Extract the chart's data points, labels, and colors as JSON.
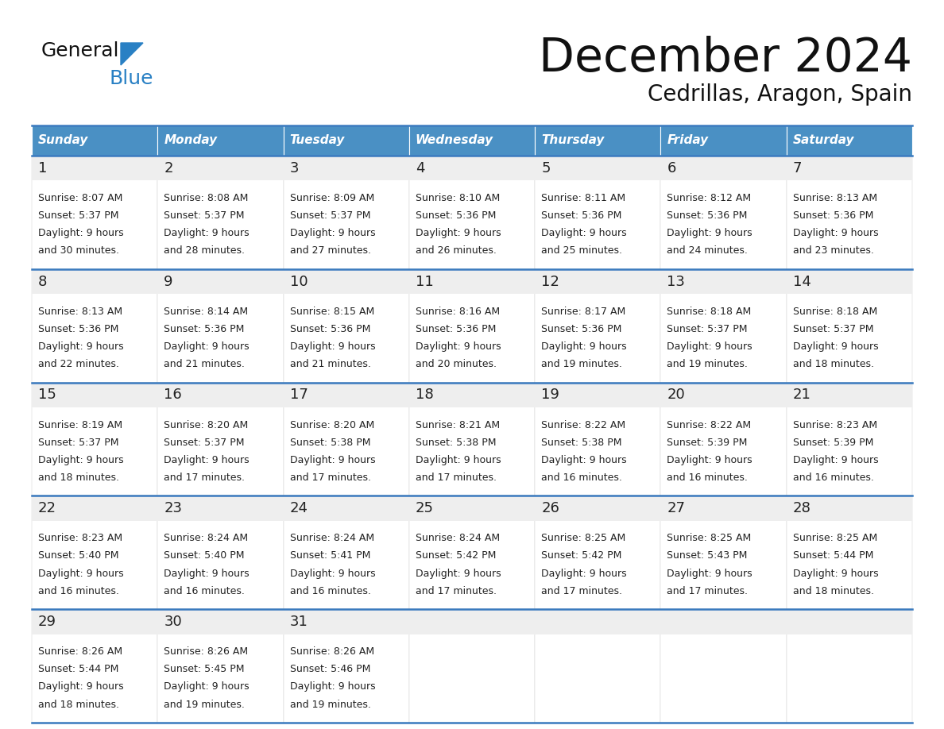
{
  "title": "December 2024",
  "subtitle": "Cedrillas, Aragon, Spain",
  "header_color": "#4a90c4",
  "header_text_color": "#ffffff",
  "cell_bg_white": "#ffffff",
  "cell_bg_gray": "#f0f0f0",
  "border_color": "#3a7abf",
  "text_color": "#222222",
  "day_names": [
    "Sunday",
    "Monday",
    "Tuesday",
    "Wednesday",
    "Thursday",
    "Friday",
    "Saturday"
  ],
  "days": [
    {
      "day": 1,
      "col": 0,
      "row": 0,
      "sunrise": "8:07 AM",
      "sunset": "5:37 PM",
      "daylight": "9 hours and 30 minutes."
    },
    {
      "day": 2,
      "col": 1,
      "row": 0,
      "sunrise": "8:08 AM",
      "sunset": "5:37 PM",
      "daylight": "9 hours and 28 minutes."
    },
    {
      "day": 3,
      "col": 2,
      "row": 0,
      "sunrise": "8:09 AM",
      "sunset": "5:37 PM",
      "daylight": "9 hours and 27 minutes."
    },
    {
      "day": 4,
      "col": 3,
      "row": 0,
      "sunrise": "8:10 AM",
      "sunset": "5:36 PM",
      "daylight": "9 hours and 26 minutes."
    },
    {
      "day": 5,
      "col": 4,
      "row": 0,
      "sunrise": "8:11 AM",
      "sunset": "5:36 PM",
      "daylight": "9 hours and 25 minutes."
    },
    {
      "day": 6,
      "col": 5,
      "row": 0,
      "sunrise": "8:12 AM",
      "sunset": "5:36 PM",
      "daylight": "9 hours and 24 minutes."
    },
    {
      "day": 7,
      "col": 6,
      "row": 0,
      "sunrise": "8:13 AM",
      "sunset": "5:36 PM",
      "daylight": "9 hours and 23 minutes."
    },
    {
      "day": 8,
      "col": 0,
      "row": 1,
      "sunrise": "8:13 AM",
      "sunset": "5:36 PM",
      "daylight": "9 hours and 22 minutes."
    },
    {
      "day": 9,
      "col": 1,
      "row": 1,
      "sunrise": "8:14 AM",
      "sunset": "5:36 PM",
      "daylight": "9 hours and 21 minutes."
    },
    {
      "day": 10,
      "col": 2,
      "row": 1,
      "sunrise": "8:15 AM",
      "sunset": "5:36 PM",
      "daylight": "9 hours and 21 minutes."
    },
    {
      "day": 11,
      "col": 3,
      "row": 1,
      "sunrise": "8:16 AM",
      "sunset": "5:36 PM",
      "daylight": "9 hours and 20 minutes."
    },
    {
      "day": 12,
      "col": 4,
      "row": 1,
      "sunrise": "8:17 AM",
      "sunset": "5:36 PM",
      "daylight": "9 hours and 19 minutes."
    },
    {
      "day": 13,
      "col": 5,
      "row": 1,
      "sunrise": "8:18 AM",
      "sunset": "5:37 PM",
      "daylight": "9 hours and 19 minutes."
    },
    {
      "day": 14,
      "col": 6,
      "row": 1,
      "sunrise": "8:18 AM",
      "sunset": "5:37 PM",
      "daylight": "9 hours and 18 minutes."
    },
    {
      "day": 15,
      "col": 0,
      "row": 2,
      "sunrise": "8:19 AM",
      "sunset": "5:37 PM",
      "daylight": "9 hours and 18 minutes."
    },
    {
      "day": 16,
      "col": 1,
      "row": 2,
      "sunrise": "8:20 AM",
      "sunset": "5:37 PM",
      "daylight": "9 hours and 17 minutes."
    },
    {
      "day": 17,
      "col": 2,
      "row": 2,
      "sunrise": "8:20 AM",
      "sunset": "5:38 PM",
      "daylight": "9 hours and 17 minutes."
    },
    {
      "day": 18,
      "col": 3,
      "row": 2,
      "sunrise": "8:21 AM",
      "sunset": "5:38 PM",
      "daylight": "9 hours and 17 minutes."
    },
    {
      "day": 19,
      "col": 4,
      "row": 2,
      "sunrise": "8:22 AM",
      "sunset": "5:38 PM",
      "daylight": "9 hours and 16 minutes."
    },
    {
      "day": 20,
      "col": 5,
      "row": 2,
      "sunrise": "8:22 AM",
      "sunset": "5:39 PM",
      "daylight": "9 hours and 16 minutes."
    },
    {
      "day": 21,
      "col": 6,
      "row": 2,
      "sunrise": "8:23 AM",
      "sunset": "5:39 PM",
      "daylight": "9 hours and 16 minutes."
    },
    {
      "day": 22,
      "col": 0,
      "row": 3,
      "sunrise": "8:23 AM",
      "sunset": "5:40 PM",
      "daylight": "9 hours and 16 minutes."
    },
    {
      "day": 23,
      "col": 1,
      "row": 3,
      "sunrise": "8:24 AM",
      "sunset": "5:40 PM",
      "daylight": "9 hours and 16 minutes."
    },
    {
      "day": 24,
      "col": 2,
      "row": 3,
      "sunrise": "8:24 AM",
      "sunset": "5:41 PM",
      "daylight": "9 hours and 16 minutes."
    },
    {
      "day": 25,
      "col": 3,
      "row": 3,
      "sunrise": "8:24 AM",
      "sunset": "5:42 PM",
      "daylight": "9 hours and 17 minutes."
    },
    {
      "day": 26,
      "col": 4,
      "row": 3,
      "sunrise": "8:25 AM",
      "sunset": "5:42 PM",
      "daylight": "9 hours and 17 minutes."
    },
    {
      "day": 27,
      "col": 5,
      "row": 3,
      "sunrise": "8:25 AM",
      "sunset": "5:43 PM",
      "daylight": "9 hours and 17 minutes."
    },
    {
      "day": 28,
      "col": 6,
      "row": 3,
      "sunrise": "8:25 AM",
      "sunset": "5:44 PM",
      "daylight": "9 hours and 18 minutes."
    },
    {
      "day": 29,
      "col": 0,
      "row": 4,
      "sunrise": "8:26 AM",
      "sunset": "5:44 PM",
      "daylight": "9 hours and 18 minutes."
    },
    {
      "day": 30,
      "col": 1,
      "row": 4,
      "sunrise": "8:26 AM",
      "sunset": "5:45 PM",
      "daylight": "9 hours and 19 minutes."
    },
    {
      "day": 31,
      "col": 2,
      "row": 4,
      "sunrise": "8:26 AM",
      "sunset": "5:46 PM",
      "daylight": "9 hours and 19 minutes."
    }
  ],
  "logo_general_color": "#111111",
  "logo_blue_color": "#2980c4",
  "logo_triangle_color": "#2980c4",
  "title_fontsize": 42,
  "subtitle_fontsize": 20,
  "header_fontsize": 11,
  "day_num_fontsize": 13,
  "cell_fontsize": 9
}
